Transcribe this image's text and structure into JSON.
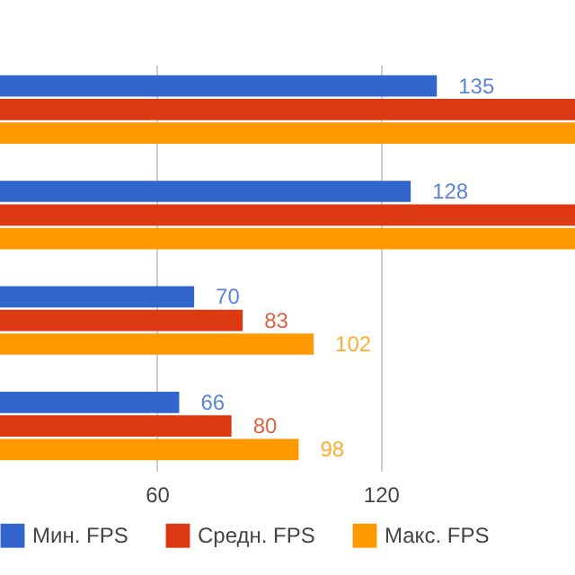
{
  "chart_data": {
    "type": "bar",
    "orientation": "horizontal",
    "categories": [
      null,
      null,
      null,
      null
    ],
    "series": [
      {
        "name": "Мин. FPS",
        "color": "#3366cc",
        "values": [
          135,
          128,
          70,
          66
        ],
        "value_labels": [
          "135",
          "128",
          "70",
          "66"
        ]
      },
      {
        "name": "Средн. FPS",
        "color": "#dc3912",
        "values": [
          172,
          172,
          83,
          80
        ],
        "value_labels": [
          null,
          null,
          "83",
          "80"
        ]
      },
      {
        "name": "Макс. FPS",
        "color": "#ff9900",
        "values": [
          172,
          172,
          102,
          98
        ],
        "value_labels": [
          null,
          null,
          "102",
          "98"
        ]
      }
    ],
    "xlim": [
      18,
      172
    ],
    "xticks": [
      60,
      120
    ],
    "grid": "x",
    "legend": "bottom"
  }
}
